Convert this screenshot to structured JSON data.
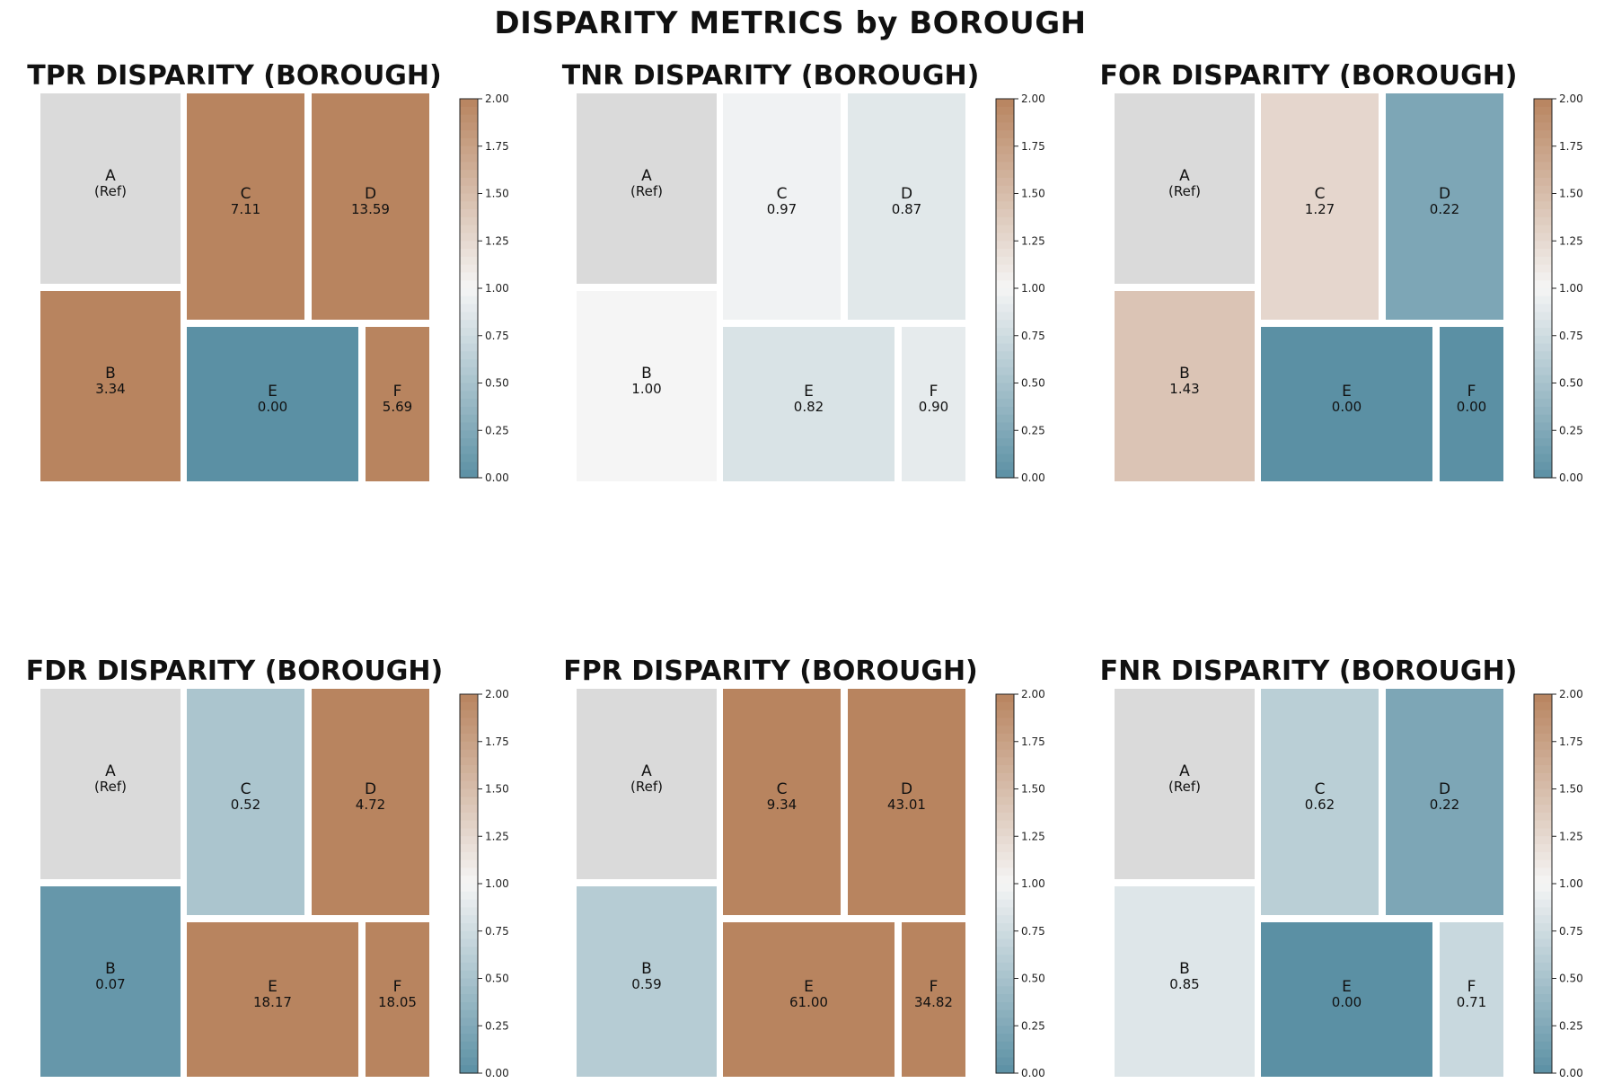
{
  "suptitle": "DISPARITY METRICS by BOROUGH",
  "colors": {
    "low": "#5b90a4",
    "mid": "#f5f5f5",
    "high": "#b8845f",
    "ref": "#dadada"
  },
  "chart_data": [
    {
      "type": "treemap",
      "title": "TPR DISPARITY (BOROUGH)",
      "cells": [
        {
          "label": "A",
          "value_text": "(Ref)",
          "value": null
        },
        {
          "label": "B",
          "value_text": "3.34",
          "value": 3.34
        },
        {
          "label": "C",
          "value_text": "7.11",
          "value": 7.11
        },
        {
          "label": "D",
          "value_text": "13.59",
          "value": 13.59
        },
        {
          "label": "E",
          "value_text": "0.00",
          "value": 0.0
        },
        {
          "label": "F",
          "value_text": "5.69",
          "value": 5.69
        }
      ],
      "colorbar": {
        "range": [
          0,
          2
        ],
        "ticks": [
          "0.00",
          "0.25",
          "0.50",
          "0.75",
          "1.00",
          "1.25",
          "1.50",
          "1.75",
          "2.00"
        ]
      }
    },
    {
      "type": "treemap",
      "title": "TNR DISPARITY (BOROUGH)",
      "cells": [
        {
          "label": "A",
          "value_text": "(Ref)",
          "value": null
        },
        {
          "label": "B",
          "value_text": "1.00",
          "value": 1.0
        },
        {
          "label": "C",
          "value_text": "0.97",
          "value": 0.97
        },
        {
          "label": "D",
          "value_text": "0.87",
          "value": 0.87
        },
        {
          "label": "E",
          "value_text": "0.82",
          "value": 0.82
        },
        {
          "label": "F",
          "value_text": "0.90",
          "value": 0.9
        }
      ],
      "colorbar": {
        "range": [
          0,
          2
        ],
        "ticks": [
          "0.00",
          "0.25",
          "0.50",
          "0.75",
          "1.00",
          "1.25",
          "1.50",
          "1.75",
          "2.00"
        ]
      }
    },
    {
      "type": "treemap",
      "title": "FOR DISPARITY (BOROUGH)",
      "cells": [
        {
          "label": "A",
          "value_text": "(Ref)",
          "value": null
        },
        {
          "label": "B",
          "value_text": "1.43",
          "value": 1.43
        },
        {
          "label": "C",
          "value_text": "1.27",
          "value": 1.27
        },
        {
          "label": "D",
          "value_text": "0.22",
          "value": 0.22
        },
        {
          "label": "E",
          "value_text": "0.00",
          "value": 0.0
        },
        {
          "label": "F",
          "value_text": "0.00",
          "value": 0.0
        }
      ],
      "colorbar": {
        "range": [
          0,
          2
        ],
        "ticks": [
          "0.00",
          "0.25",
          "0.50",
          "0.75",
          "1.00",
          "1.25",
          "1.50",
          "1.75",
          "2.00"
        ]
      }
    },
    {
      "type": "treemap",
      "title": "FDR DISPARITY (BOROUGH)",
      "cells": [
        {
          "label": "A",
          "value_text": "(Ref)",
          "value": null
        },
        {
          "label": "B",
          "value_text": "0.07",
          "value": 0.07
        },
        {
          "label": "C",
          "value_text": "0.52",
          "value": 0.52
        },
        {
          "label": "D",
          "value_text": "4.72",
          "value": 4.72
        },
        {
          "label": "E",
          "value_text": "18.17",
          "value": 18.17
        },
        {
          "label": "F",
          "value_text": "18.05",
          "value": 18.05
        }
      ],
      "colorbar": {
        "range": [
          0,
          2
        ],
        "ticks": [
          "0.00",
          "0.25",
          "0.50",
          "0.75",
          "1.00",
          "1.25",
          "1.50",
          "1.75",
          "2.00"
        ]
      }
    },
    {
      "type": "treemap",
      "title": "FPR DISPARITY (BOROUGH)",
      "cells": [
        {
          "label": "A",
          "value_text": "(Ref)",
          "value": null
        },
        {
          "label": "B",
          "value_text": "0.59",
          "value": 0.59
        },
        {
          "label": "C",
          "value_text": "9.34",
          "value": 9.34
        },
        {
          "label": "D",
          "value_text": "43.01",
          "value": 43.01
        },
        {
          "label": "E",
          "value_text": "61.00",
          "value": 61.0
        },
        {
          "label": "F",
          "value_text": "34.82",
          "value": 34.82
        }
      ],
      "colorbar": {
        "range": [
          0,
          2
        ],
        "ticks": [
          "0.00",
          "0.25",
          "0.50",
          "0.75",
          "1.00",
          "1.25",
          "1.50",
          "1.75",
          "2.00"
        ]
      }
    },
    {
      "type": "treemap",
      "title": "FNR DISPARITY (BOROUGH)",
      "cells": [
        {
          "label": "A",
          "value_text": "(Ref)",
          "value": null
        },
        {
          "label": "B",
          "value_text": "0.85",
          "value": 0.85
        },
        {
          "label": "C",
          "value_text": "0.62",
          "value": 0.62
        },
        {
          "label": "D",
          "value_text": "0.22",
          "value": 0.22
        },
        {
          "label": "E",
          "value_text": "0.00",
          "value": 0.0
        },
        {
          "label": "F",
          "value_text": "0.71",
          "value": 0.71
        }
      ],
      "colorbar": {
        "range": [
          0,
          2
        ],
        "ticks": [
          "0.00",
          "0.25",
          "0.50",
          "0.75",
          "1.00",
          "1.25",
          "1.50",
          "1.75",
          "2.00"
        ]
      }
    }
  ]
}
